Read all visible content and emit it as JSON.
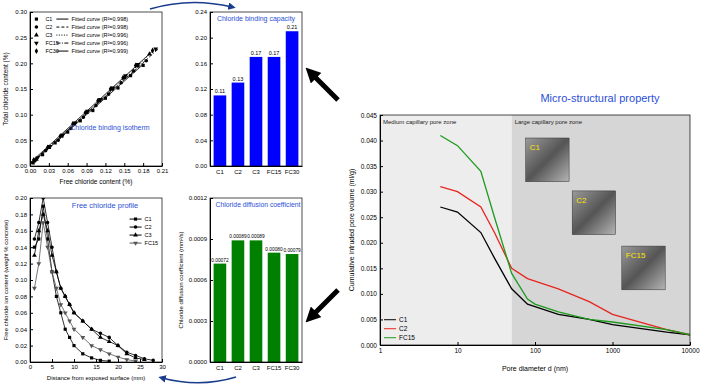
{
  "chart_data": [
    {
      "type": "scatter",
      "title": "Chloride binding isotherm",
      "x_label": "Free chloride content (%)",
      "y_label": "Total chloride content (%)",
      "xlim": [
        0,
        0.21
      ],
      "ylim": [
        0,
        0.3
      ],
      "xticks": [
        {
          "value": 0,
          "label": "0.00"
        },
        0.03,
        0.06,
        0.09,
        0.12,
        0.15,
        0.18,
        0.21
      ],
      "yticks": [
        {
          "value": 0,
          "label": "0.00"
        },
        {
          "value": 0.05,
          "label": "0.05"
        },
        {
          "value": 0.1,
          "label": "0.10"
        },
        {
          "value": 0.15,
          "label": "0.15"
        },
        {
          "value": 0.2,
          "label": "0.20"
        },
        {
          "value": 0.25,
          "label": "0.25"
        },
        {
          "value": 0.3,
          "label": "0.30"
        }
      ],
      "legend": "top-left",
      "series": [
        {
          "name": "C1",
          "type": "scatter",
          "marker": "square",
          "color": "#000000",
          "x": [
            0.005,
            0.02,
            0.04,
            0.06,
            0.08,
            0.1,
            0.12,
            0.14,
            0.16,
            0.18
          ],
          "values": [
            0.006,
            0.022,
            0.045,
            0.066,
            0.088,
            0.108,
            0.132,
            0.152,
            0.176,
            0.196
          ]
        },
        {
          "name": "Fitted curve (R²=0.998)",
          "type": "line",
          "line_style": "solid",
          "color": "#000000",
          "x": [
            0,
            0.18
          ],
          "values": [
            0.002,
            0.198
          ]
        },
        {
          "name": "C2",
          "type": "scatter",
          "marker": "circle",
          "color": "#000000",
          "x": [
            0.008,
            0.025,
            0.045,
            0.065,
            0.085,
            0.105,
            0.125,
            0.145,
            0.165,
            0.185
          ],
          "values": [
            0.01,
            0.03,
            0.05,
            0.073,
            0.095,
            0.118,
            0.14,
            0.162,
            0.185,
            0.205
          ]
        },
        {
          "name": "Fitted curve (R²=0.998)",
          "type": "line",
          "line_style": "dashed",
          "color": "#000000",
          "x": [
            0,
            0.185
          ],
          "values": [
            0.004,
            0.206
          ]
        },
        {
          "name": "C3",
          "type": "scatter",
          "marker": "triangle",
          "color": "#000000",
          "x": [
            0.01,
            0.03,
            0.05,
            0.07,
            0.09,
            0.11,
            0.13,
            0.15,
            0.17,
            0.19
          ],
          "values": [
            0.013,
            0.036,
            0.058,
            0.082,
            0.104,
            0.127,
            0.15,
            0.172,
            0.195,
            0.218
          ]
        },
        {
          "name": "Fitted curve (R²=0.996)",
          "type": "line",
          "line_style": "dotted",
          "color": "#000000",
          "x": [
            0,
            0.19
          ],
          "values": [
            0.003,
            0.217
          ]
        },
        {
          "name": "FC15",
          "type": "scatter",
          "marker": "triangle-down",
          "color": "#000000",
          "x": [
            0.012,
            0.032,
            0.052,
            0.072,
            0.092,
            0.112,
            0.132,
            0.152,
            0.172,
            0.2
          ],
          "values": [
            0.016,
            0.038,
            0.06,
            0.084,
            0.107,
            0.13,
            0.152,
            0.176,
            0.198,
            0.228
          ]
        },
        {
          "name": "Fitted curve (R²=0.996)",
          "type": "line",
          "line_style": "dashdot",
          "color": "#000000",
          "x": [
            0,
            0.205
          ],
          "values": [
            0.004,
            0.229
          ]
        },
        {
          "name": "FC30",
          "type": "scatter",
          "marker": "diamond",
          "color": "#000000",
          "x": [
            0.006,
            0.028,
            0.048,
            0.068,
            0.088,
            0.108,
            0.128,
            0.148,
            0.168,
            0.195
          ],
          "values": [
            0.012,
            0.036,
            0.058,
            0.082,
            0.104,
            0.127,
            0.15,
            0.172,
            0.196,
            0.225
          ]
        },
        {
          "name": "Fitted curve (R²=0.999)",
          "type": "line",
          "line_style": "solid",
          "color": "#000000",
          "x": [
            0,
            0.195
          ],
          "values": [
            0.006,
            0.224
          ]
        }
      ]
    },
    {
      "type": "bar",
      "title": "Chloride binding capacity",
      "categories": [
        "C1",
        "C2",
        "C3",
        "FC15",
        "FC30"
      ],
      "values": [
        0.11,
        0.13,
        0.17,
        0.17,
        0.21
      ],
      "color": "#0000ff",
      "data_labels": true,
      "ylim": [
        0,
        0.24
      ],
      "yticks": [
        {
          "value": 0,
          "label": "0.00"
        },
        {
          "value": 0.04,
          "label": "0.04"
        },
        {
          "value": 0.08,
          "label": "0.08"
        },
        {
          "value": 0.12,
          "label": "0.12"
        },
        {
          "value": 0.16,
          "label": "0.16"
        },
        {
          "value": 0.2,
          "label": "0.20"
        },
        {
          "value": 0.24,
          "label": "0.24"
        }
      ]
    },
    {
      "type": "line",
      "title": "Free chloride profile",
      "x_label": "Distance from exposed surface (mm)",
      "y_label": "Free chloride ion content (weight % concrete)",
      "xlim": [
        0,
        30
      ],
      "ylim": [
        0,
        0.2
      ],
      "xticks": [
        0,
        5,
        10,
        15,
        20,
        25,
        30
      ],
      "yticks": [
        {
          "value": 0,
          "label": "0.00"
        },
        {
          "value": 0.02,
          "label": "0.02"
        },
        {
          "value": 0.04,
          "label": "0.04"
        },
        {
          "value": 0.06,
          "label": "0.06"
        },
        {
          "value": 0.08,
          "label": "0.08"
        },
        {
          "value": 0.1,
          "label": "0.10"
        },
        {
          "value": 0.12,
          "label": "0.12"
        },
        {
          "value": 0.14,
          "label": "0.14"
        },
        {
          "value": 0.16,
          "label": "0.16"
        },
        {
          "value": 0.18,
          "label": "0.18"
        },
        {
          "value": 0.2,
          "label": "0.20"
        }
      ],
      "legend": "top-right",
      "x": [
        1,
        2,
        3,
        4,
        5,
        6,
        7,
        8,
        9,
        10,
        12,
        14,
        16,
        18,
        20,
        22,
        24,
        26,
        28
      ],
      "series": [
        {
          "name": "C1",
          "marker": "square",
          "line_style": "solid",
          "color": "#000000",
          "values": [
            0.14,
            0.15,
            0.19,
            0.15,
            0.11,
            0.08,
            0.06,
            0.04,
            0.03,
            0.02,
            0.01,
            0.005,
            0.002,
            0.001,
            null,
            null,
            null,
            null,
            null
          ]
        },
        {
          "name": "C2",
          "marker": "circle",
          "line_style": "solid",
          "color": "#000000",
          "values": [
            0.15,
            0.17,
            0.2,
            0.17,
            0.14,
            0.11,
            0.09,
            0.08,
            0.07,
            0.06,
            0.05,
            0.04,
            0.035,
            0.03,
            0.02,
            0.012,
            0.008,
            0.004,
            0.002
          ]
        },
        {
          "name": "C3",
          "marker": "triangle",
          "line_style": "solid",
          "color": "#000000",
          "values": [
            0.13,
            0.16,
            0.18,
            0.16,
            0.13,
            0.11,
            0.09,
            0.08,
            0.07,
            0.06,
            0.05,
            0.04,
            0.03,
            0.025,
            0.02,
            0.01,
            0.005,
            0.003,
            null
          ]
        },
        {
          "name": "FC15",
          "marker": "triangle-down",
          "line_style": "solid",
          "color": "#555555",
          "values": [
            0.09,
            0.12,
            0.17,
            0.14,
            0.11,
            0.09,
            0.07,
            0.06,
            0.05,
            0.04,
            0.03,
            0.02,
            0.015,
            0.01,
            0.006,
            0.003,
            0.001,
            null,
            null
          ]
        }
      ]
    },
    {
      "type": "bar",
      "title": "Chloride diffusion coefficient",
      "y_label": "Chloride diffusion coefficient (mm²/s)",
      "categories": [
        "C1",
        "C2",
        "C3",
        "FC15",
        "FC30"
      ],
      "values": [
        0.00072,
        0.00089,
        0.00089,
        0.0008,
        0.00079
      ],
      "value_labels": [
        "0.00072",
        "0.00089",
        "0.00089",
        "0.00080",
        "0.00079"
      ],
      "color": "#008000",
      "data_labels": true,
      "ylim": [
        0,
        0.0012
      ],
      "yticks": [
        {
          "value": 0,
          "label": "0.0000"
        },
        {
          "value": 0.0003,
          "label": "0.0003"
        },
        {
          "value": 0.0006,
          "label": "0.0006"
        },
        {
          "value": 0.0009,
          "label": "0.0009"
        },
        {
          "value": 0.0012,
          "label": "0.0012"
        }
      ]
    },
    {
      "type": "line",
      "title": "Micro-structural property",
      "x_label": "Pore diameter d (nm)",
      "y_label": "Cumulative intruded pore volume (ml/g)",
      "log": "x",
      "xlim": [
        1,
        10000
      ],
      "ylim": [
        0,
        0.045
      ],
      "xticks": [
        1,
        10,
        100,
        1000,
        10000
      ],
      "yticks": [
        {
          "value": 0,
          "label": "0.000"
        },
        {
          "value": 0.005,
          "label": "0.005"
        },
        {
          "value": 0.01,
          "label": "0.010"
        },
        {
          "value": 0.015,
          "label": "0.015"
        },
        {
          "value": 0.02,
          "label": "0.020"
        },
        {
          "value": 0.025,
          "label": "0.025"
        },
        {
          "value": 0.03,
          "label": "0.030"
        },
        {
          "value": 0.035,
          "label": "0.035"
        },
        {
          "value": 0.04,
          "label": "0.040"
        },
        {
          "value": 0.045,
          "label": "0.045"
        }
      ],
      "legend": "bottom-left",
      "zones": [
        {
          "label": "Medium capillary pore zone",
          "range": [
            1,
            50
          ]
        },
        {
          "label": "Large capillary pore zone",
          "range": [
            50,
            10000
          ]
        }
      ],
      "micrographs": [
        "C1",
        "C2",
        "FC15"
      ],
      "x": [
        6,
        10,
        20,
        30,
        50,
        80,
        100,
        200,
        500,
        1000,
        5000,
        10000
      ],
      "series": [
        {
          "name": "C1",
          "line_style": "solid",
          "color": "#000000",
          "values": [
            0.027,
            0.026,
            0.022,
            0.017,
            0.011,
            0.008,
            0.0075,
            0.006,
            0.005,
            0.004,
            0.0025,
            0.002
          ]
        },
        {
          "name": "C2",
          "line_style": "solid",
          "color": "#e8251f",
          "values": [
            0.031,
            0.03,
            0.027,
            0.022,
            0.015,
            0.013,
            0.0125,
            0.011,
            0.0085,
            0.006,
            0.003,
            0.002
          ]
        },
        {
          "name": "FC15",
          "line_style": "solid",
          "color": "#1e9a1e",
          "values": [
            0.041,
            0.039,
            0.034,
            0.025,
            0.014,
            0.009,
            0.008,
            0.0065,
            0.005,
            0.0045,
            0.003,
            0.002
          ]
        }
      ]
    }
  ]
}
